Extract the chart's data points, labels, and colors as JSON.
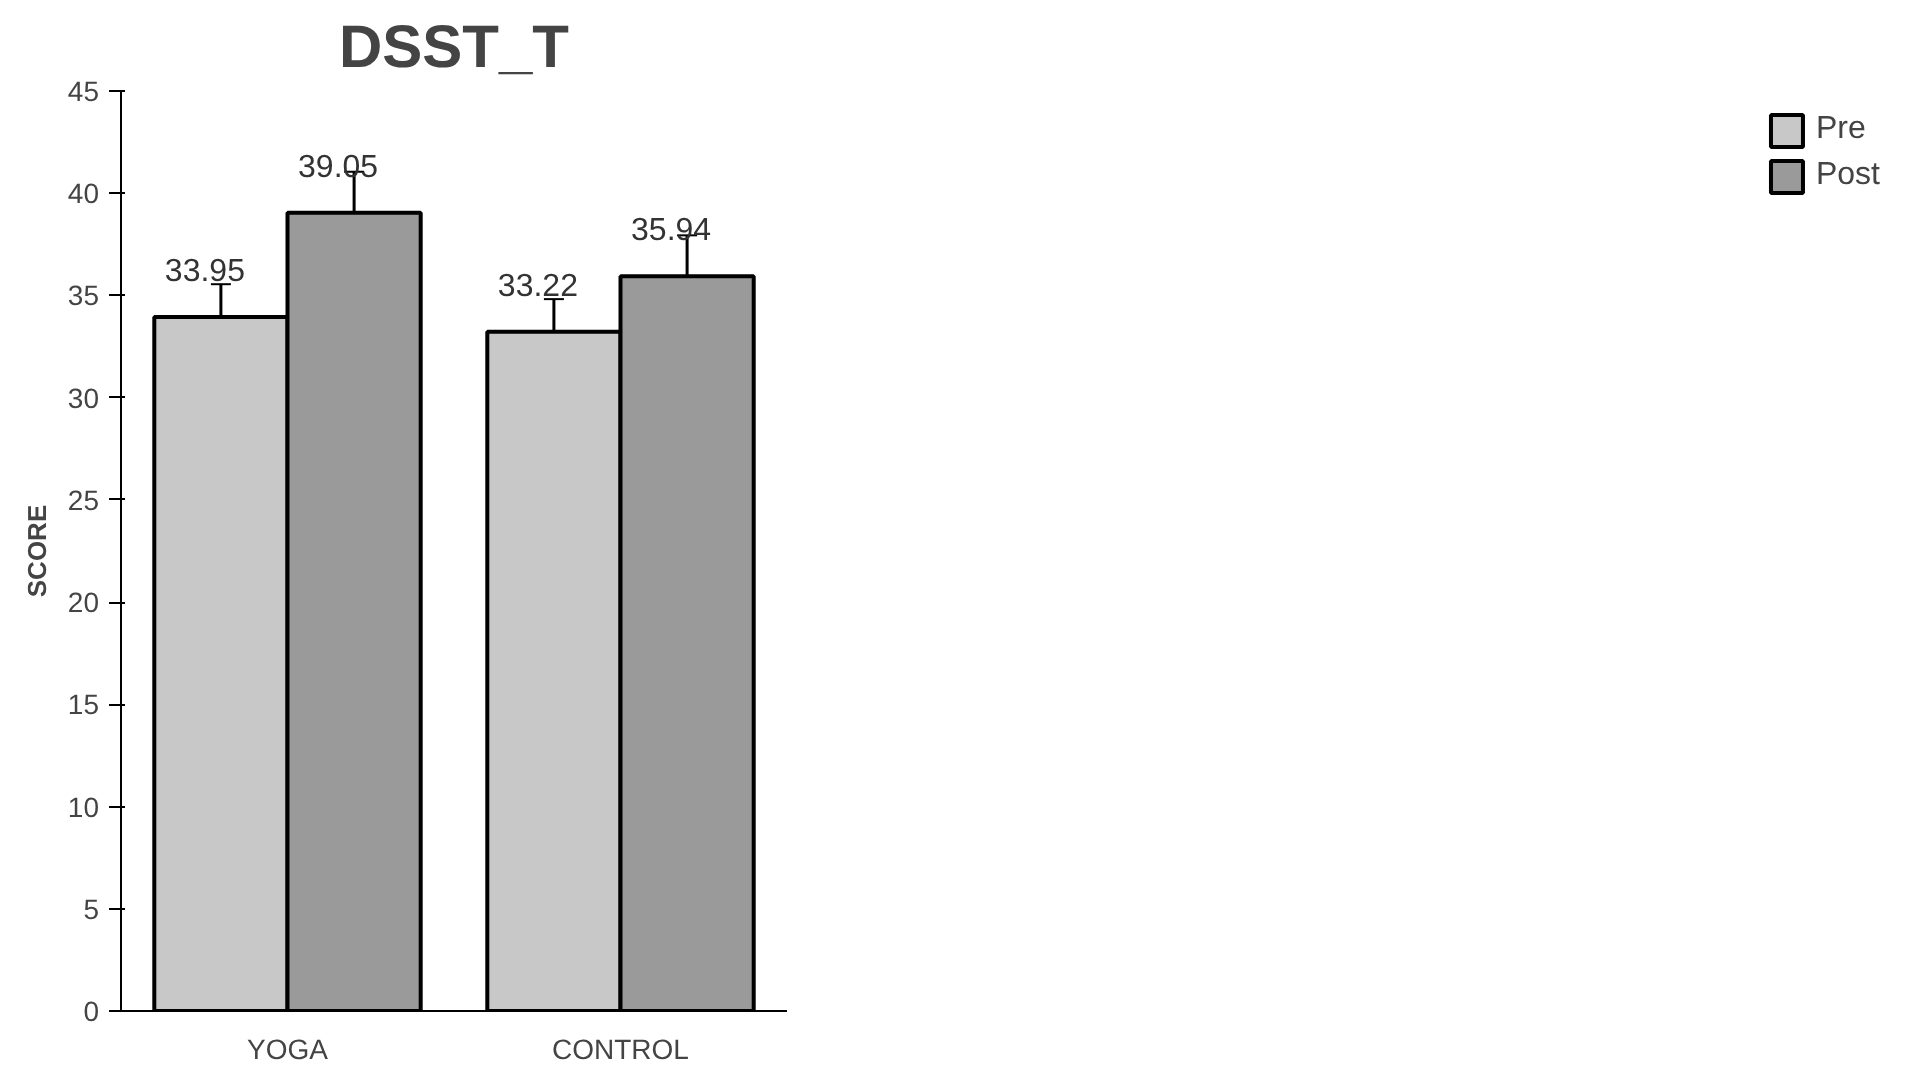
{
  "chart_data": {
    "type": "bar",
    "title": "DSST_T",
    "ylabel": "SCORE",
    "categories": [
      "YOGA",
      "CONTROL"
    ],
    "series": [
      {
        "name": "Pre",
        "color": "#c8c8c8",
        "values": [
          33.95,
          33.22
        ],
        "errors": [
          1.6,
          1.6
        ]
      },
      {
        "name": "Post",
        "color": "#9a9a9a",
        "values": [
          39.05,
          35.94
        ],
        "errors": [
          2.0,
          2.0
        ]
      }
    ],
    "ylim": [
      0,
      45
    ],
    "yticks": [
      0,
      5,
      10,
      15,
      20,
      25,
      30,
      35,
      40,
      45
    ],
    "data_labels": true,
    "grid": false,
    "legend": "right"
  }
}
